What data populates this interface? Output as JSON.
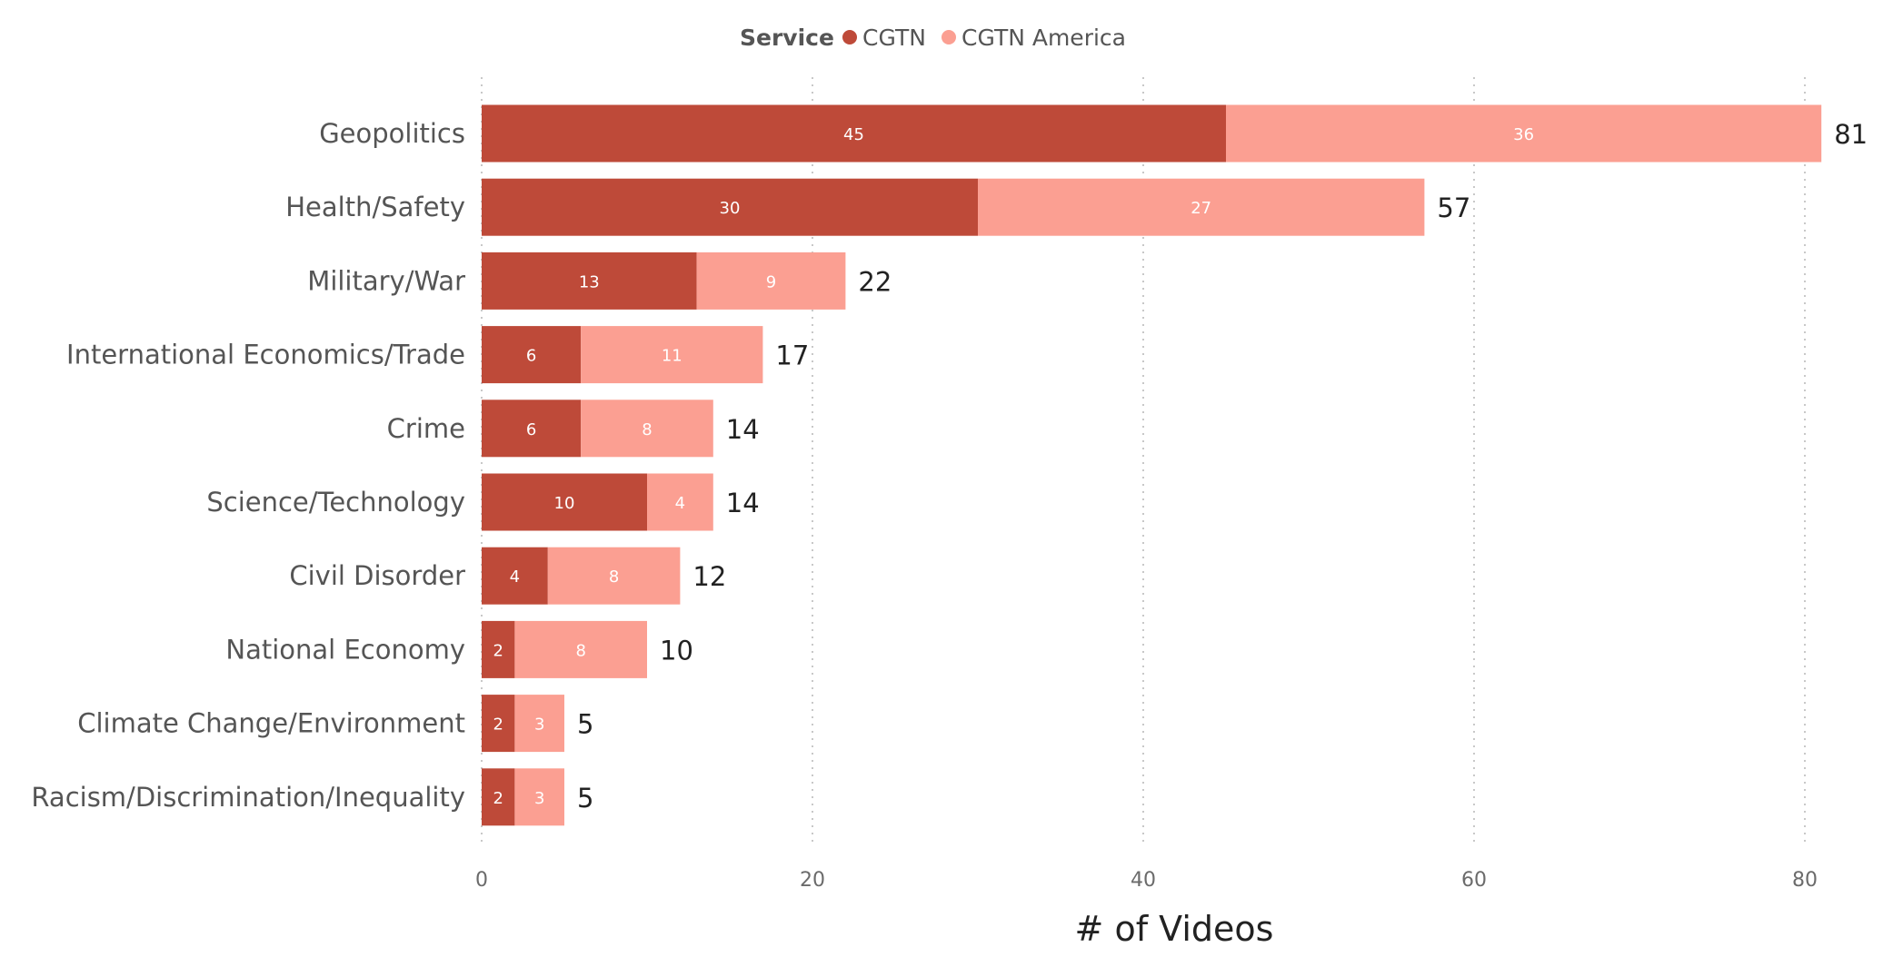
{
  "chart_data": {
    "type": "bar",
    "orientation": "horizontal",
    "stacked": true,
    "legend": {
      "title": "Service",
      "placement": "top-center"
    },
    "categories": [
      "Geopolitics",
      "Health/Safety",
      "Military/War",
      "International Economics/Trade",
      "Crime",
      "Science/Technology",
      "Civil Disorder",
      "National Economy",
      "Climate Change/Environment",
      "Racism/Discrimination/Inequality"
    ],
    "series": [
      {
        "name": "CGTN",
        "color": "#be4a39",
        "values": [
          45,
          30,
          13,
          6,
          6,
          10,
          4,
          2,
          2,
          2
        ]
      },
      {
        "name": "CGTN America",
        "color": "#fb9f92",
        "values": [
          36,
          27,
          9,
          11,
          8,
          4,
          8,
          8,
          3,
          3
        ]
      }
    ],
    "totals": [
      81,
      57,
      22,
      17,
      14,
      14,
      12,
      10,
      5,
      5
    ],
    "xlabel": "# of Videos",
    "ylabel": "",
    "xlim": [
      0,
      81
    ],
    "xticks": [
      0,
      20,
      40,
      60,
      80
    ],
    "grid": true
  }
}
